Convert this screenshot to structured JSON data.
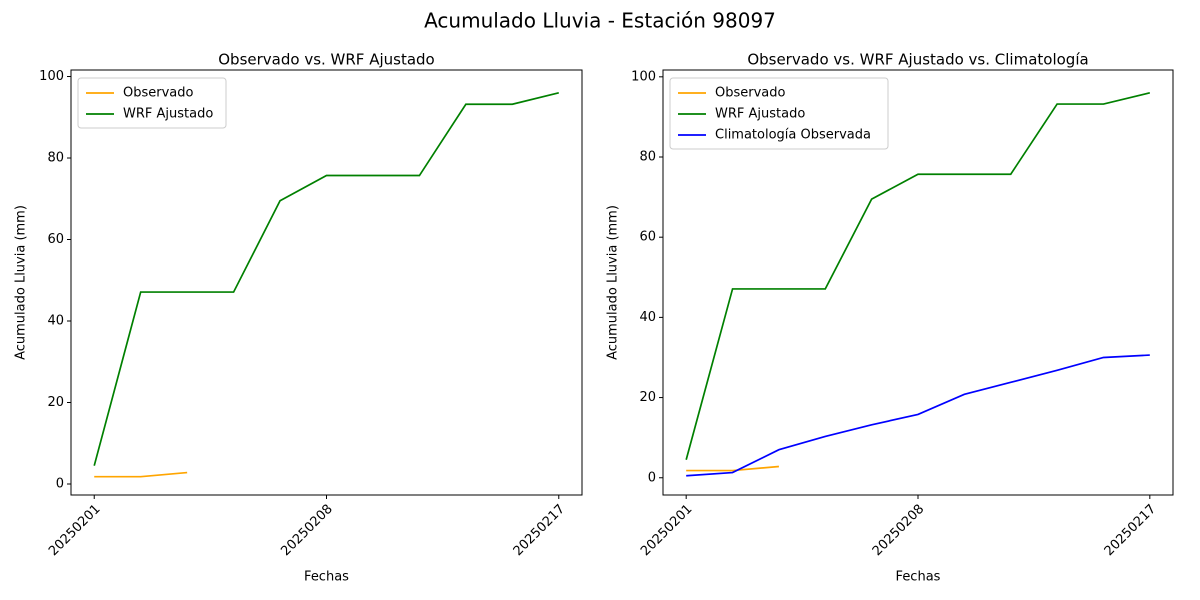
{
  "title": "Acumulado Lluvia - Estación 98097",
  "chart_data": [
    {
      "type": "line",
      "title": "Observado vs. WRF Ajustado",
      "xlabel": "Fechas",
      "ylabel": "Acumulado Lluvia (mm)",
      "categories": [
        "20250201",
        null,
        null,
        null,
        null,
        "20250208",
        null,
        null,
        null,
        null,
        "20250217"
      ],
      "xlim": [
        -0.5,
        10.5
      ],
      "ylim": [
        -2.7,
        101.6
      ],
      "yticks": [
        0,
        20,
        40,
        60,
        80,
        100
      ],
      "legend": "upper left",
      "series": [
        {
          "name": "Observado",
          "color": "orange",
          "values": [
            1.8,
            1.8,
            2.8,
            null,
            null,
            null,
            null,
            null,
            null,
            null,
            null
          ]
        },
        {
          "name": "WRF Ajustado",
          "color": "green",
          "values": [
            4.5,
            47.1,
            47.1,
            47.1,
            69.5,
            75.7,
            75.7,
            75.7,
            93.2,
            93.2,
            96.0
          ]
        }
      ]
    },
    {
      "type": "line",
      "title": "Observado vs. WRF Ajustado vs. Climatología",
      "xlabel": "Fechas",
      "ylabel": "Acumulado Lluvia (mm)",
      "categories": [
        "20250201",
        null,
        null,
        null,
        null,
        "20250208",
        null,
        null,
        null,
        null,
        "20250217"
      ],
      "xlim": [
        -0.5,
        10.5
      ],
      "ylim": [
        -4.3,
        101.7
      ],
      "yticks": [
        0,
        20,
        40,
        60,
        80,
        100
      ],
      "legend": "upper left",
      "series": [
        {
          "name": "Observado",
          "color": "orange",
          "values": [
            1.8,
            1.8,
            2.8,
            null,
            null,
            null,
            null,
            null,
            null,
            null,
            null
          ]
        },
        {
          "name": "WRF Ajustado",
          "color": "green",
          "values": [
            4.5,
            47.1,
            47.1,
            47.1,
            69.5,
            75.7,
            75.7,
            75.7,
            93.2,
            93.2,
            96.0
          ]
        },
        {
          "name": "Climatología Observada",
          "color": "blue",
          "values": [
            0.5,
            1.3,
            7.0,
            10.3,
            13.2,
            15.8,
            20.8,
            23.8,
            26.8,
            30.0,
            30.6
          ]
        }
      ]
    }
  ]
}
